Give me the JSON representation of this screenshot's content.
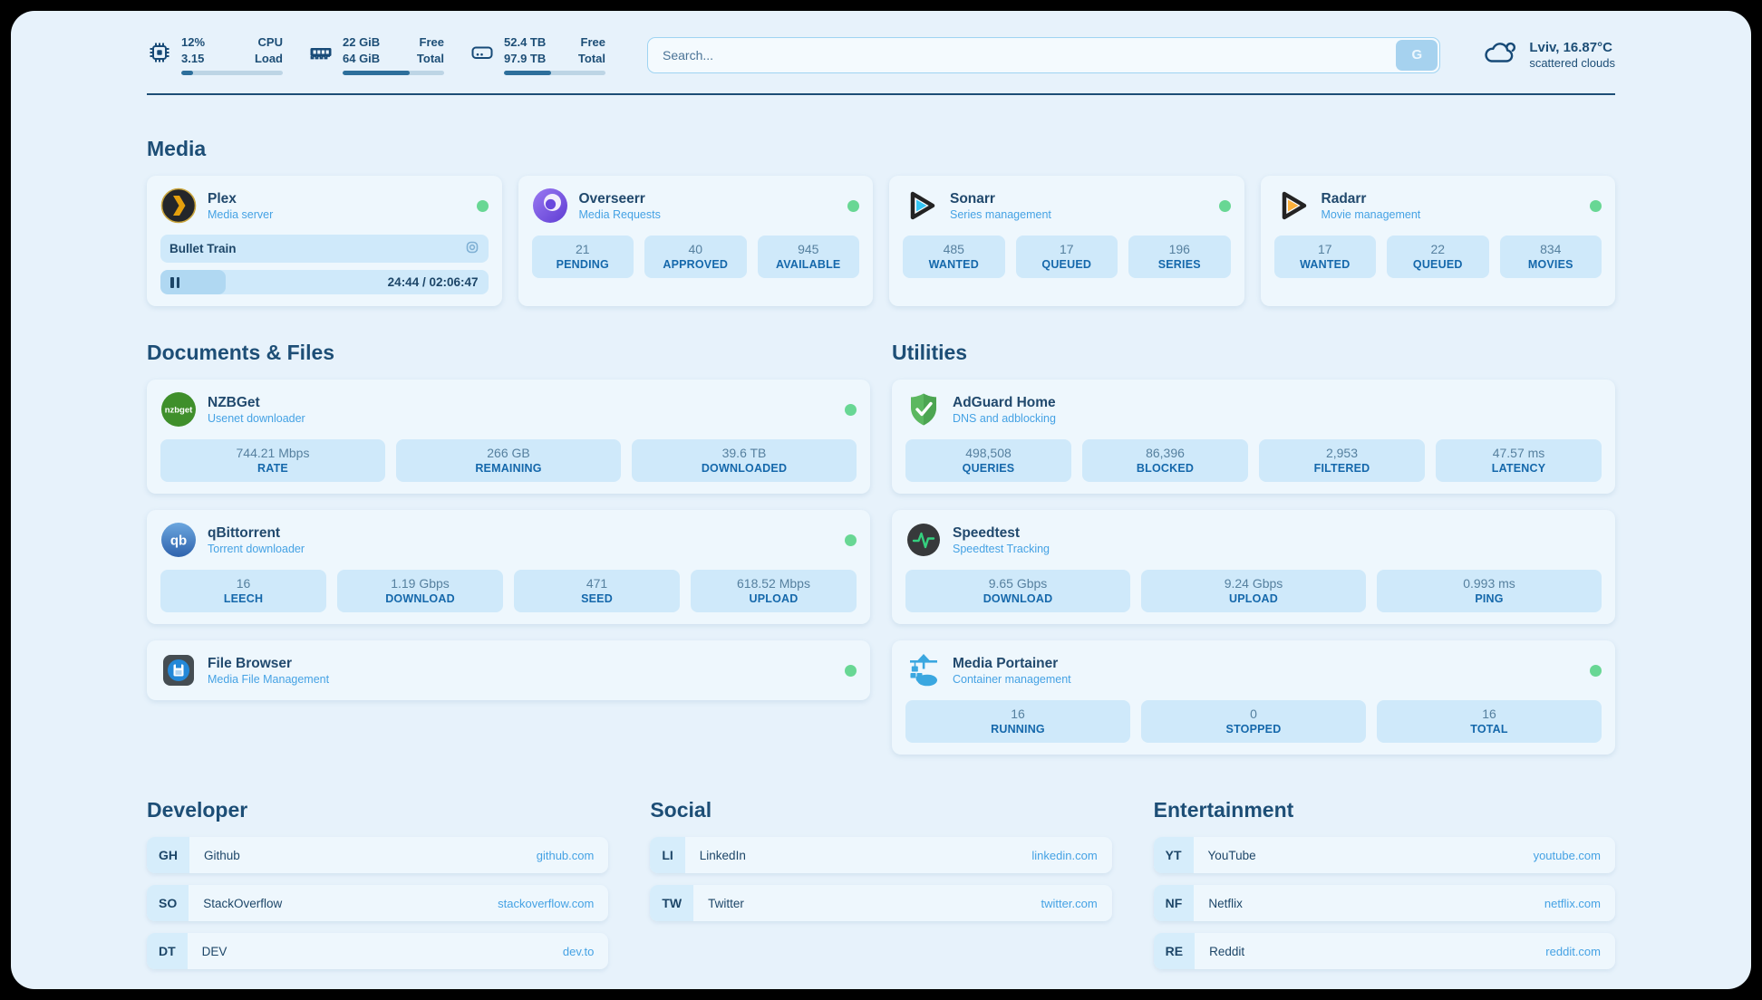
{
  "header": {
    "resources": [
      {
        "icon": "cpu-icon",
        "values": [
          "12%",
          "3.15"
        ],
        "labels": [
          "CPU",
          "Load"
        ],
        "progress_pct": 12
      },
      {
        "icon": "ram-icon",
        "values": [
          "22 GiB",
          "64 GiB"
        ],
        "labels": [
          "Free",
          "Total"
        ],
        "progress_pct": 66
      },
      {
        "icon": "disk-icon",
        "values": [
          "52.4 TB",
          "97.9 TB"
        ],
        "labels": [
          "Free",
          "Total"
        ],
        "progress_pct": 46
      }
    ],
    "search": {
      "placeholder": "Search...",
      "button": "G"
    },
    "weather": {
      "location": "Lviv, 16.87°C",
      "condition": "scattered clouds"
    }
  },
  "sections": {
    "media": {
      "title": "Media",
      "plex": {
        "name": "Plex",
        "subtitle": "Media server",
        "status": "online",
        "now_playing": {
          "title": "Bullet Train",
          "time": "24:44 / 02:06:47",
          "progress_pct": 20
        }
      },
      "overseerr": {
        "name": "Overseerr",
        "subtitle": "Media Requests",
        "status": "online",
        "stats": [
          {
            "value": "21",
            "label": "PENDING"
          },
          {
            "value": "40",
            "label": "APPROVED"
          },
          {
            "value": "945",
            "label": "AVAILABLE"
          }
        ]
      },
      "sonarr": {
        "name": "Sonarr",
        "subtitle": "Series management",
        "status": "online",
        "stats": [
          {
            "value": "485",
            "label": "WANTED"
          },
          {
            "value": "17",
            "label": "QUEUED"
          },
          {
            "value": "196",
            "label": "SERIES"
          }
        ]
      },
      "radarr": {
        "name": "Radarr",
        "subtitle": "Movie management",
        "status": "online",
        "stats": [
          {
            "value": "17",
            "label": "WANTED"
          },
          {
            "value": "22",
            "label": "QUEUED"
          },
          {
            "value": "834",
            "label": "MOVIES"
          }
        ]
      }
    },
    "documents": {
      "title": "Documents & Files",
      "nzbget": {
        "name": "NZBGet",
        "subtitle": "Usenet downloader",
        "status": "online",
        "stats": [
          {
            "value": "744.21 Mbps",
            "label": "RATE"
          },
          {
            "value": "266 GB",
            "label": "REMAINING"
          },
          {
            "value": "39.6 TB",
            "label": "DOWNLOADED"
          }
        ]
      },
      "qbittorrent": {
        "name": "qBittorrent",
        "subtitle": "Torrent downloader",
        "status": "online",
        "stats": [
          {
            "value": "16",
            "label": "LEECH"
          },
          {
            "value": "1.19 Gbps",
            "label": "DOWNLOAD"
          },
          {
            "value": "471",
            "label": "SEED"
          },
          {
            "value": "618.52 Mbps",
            "label": "UPLOAD"
          }
        ]
      },
      "filebrowser": {
        "name": "File Browser",
        "subtitle": "Media File Management",
        "status": "online"
      }
    },
    "utilities": {
      "title": "Utilities",
      "adguard": {
        "name": "AdGuard Home",
        "subtitle": "DNS and adblocking",
        "stats": [
          {
            "value": "498,508",
            "label": "QUERIES"
          },
          {
            "value": "86,396",
            "label": "BLOCKED"
          },
          {
            "value": "2,953",
            "label": "FILTERED"
          },
          {
            "value": "47.57 ms",
            "label": "LATENCY"
          }
        ]
      },
      "speedtest": {
        "name": "Speedtest",
        "subtitle": "Speedtest Tracking",
        "stats": [
          {
            "value": "9.65 Gbps",
            "label": "DOWNLOAD"
          },
          {
            "value": "9.24 Gbps",
            "label": "UPLOAD"
          },
          {
            "value": "0.993 ms",
            "label": "PING"
          }
        ]
      },
      "portainer": {
        "name": "Media Portainer",
        "subtitle": "Container management",
        "status": "online",
        "stats": [
          {
            "value": "16",
            "label": "RUNNING"
          },
          {
            "value": "0",
            "label": "STOPPED"
          },
          {
            "value": "16",
            "label": "TOTAL"
          }
        ]
      }
    },
    "developer": {
      "title": "Developer",
      "links": [
        {
          "abbr": "GH",
          "name": "Github",
          "url": "github.com"
        },
        {
          "abbr": "SO",
          "name": "StackOverflow",
          "url": "stackoverflow.com"
        },
        {
          "abbr": "DT",
          "name": "DEV",
          "url": "dev.to"
        }
      ]
    },
    "social": {
      "title": "Social",
      "links": [
        {
          "abbr": "LI",
          "name": "LinkedIn",
          "url": "linkedin.com"
        },
        {
          "abbr": "TW",
          "name": "Twitter",
          "url": "twitter.com"
        }
      ]
    },
    "entertainment": {
      "title": "Entertainment",
      "links": [
        {
          "abbr": "YT",
          "name": "YouTube",
          "url": "youtube.com"
        },
        {
          "abbr": "NF",
          "name": "Netflix",
          "url": "netflix.com"
        },
        {
          "abbr": "RE",
          "name": "Reddit",
          "url": "reddit.com"
        }
      ]
    }
  },
  "colors": {
    "accent": "#45a2e4",
    "navy": "#1d4e76",
    "status_online": "#68d794",
    "pill_bg": "#cfe9fa"
  }
}
